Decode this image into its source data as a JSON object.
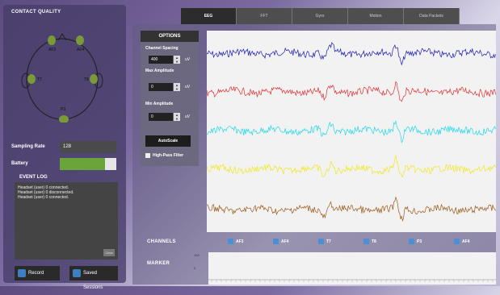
{
  "contact_quality": {
    "title": "CONTACT QUALITY",
    "sensors": [
      "AF3",
      "AF4",
      "T7",
      "T8",
      "P3"
    ]
  },
  "sampling_rate": {
    "label": "Sampling Rate",
    "value": "128"
  },
  "battery": {
    "label": "Battery",
    "level": 0.8
  },
  "event_log": {
    "title": "EVENT LOG",
    "lines": [
      "Headset (user) 0 connected.",
      "Headset (user) 0 disconnected.",
      "Headset (user) 0 connected."
    ],
    "clear_label": "Clear"
  },
  "buttons": {
    "record": "Record",
    "saved_sessions": "Saved Sessions"
  },
  "tabs": [
    "EEG",
    "FFT",
    "Gyro",
    "Motion",
    "Data Packets"
  ],
  "active_tab": "EEG",
  "options": {
    "title": "OPTIONS",
    "channel_spacing_label": "Channel Spacing",
    "channel_spacing_value": "400",
    "max_amplitude_label": "Max Amplitude",
    "max_amplitude_value": "0",
    "min_amplitude_label": "Min Amplitude",
    "min_amplitude_value": "0",
    "unit": "uV",
    "autoscale_label": "AutoScale",
    "highpass_label": "High-Pass Filter"
  },
  "channels": {
    "title": "CHANNELS",
    "items": [
      {
        "name": "AF3",
        "color": "#1a1ab4"
      },
      {
        "name": "AF4",
        "color": "#e03030"
      },
      {
        "name": "T7",
        "color": "#20d8e8"
      },
      {
        "name": "T8",
        "color": "#f0e820"
      },
      {
        "name": "P3",
        "color": "#9a5a18"
      },
      {
        "name": "AF4",
        "color": "#e03030"
      }
    ]
  },
  "marker": {
    "title": "MARKER",
    "y_ticks": [
      "100",
      "0"
    ]
  },
  "colors": {
    "sensor_good": "#7a9a3a",
    "battery_fill": "#6aa43a"
  }
}
